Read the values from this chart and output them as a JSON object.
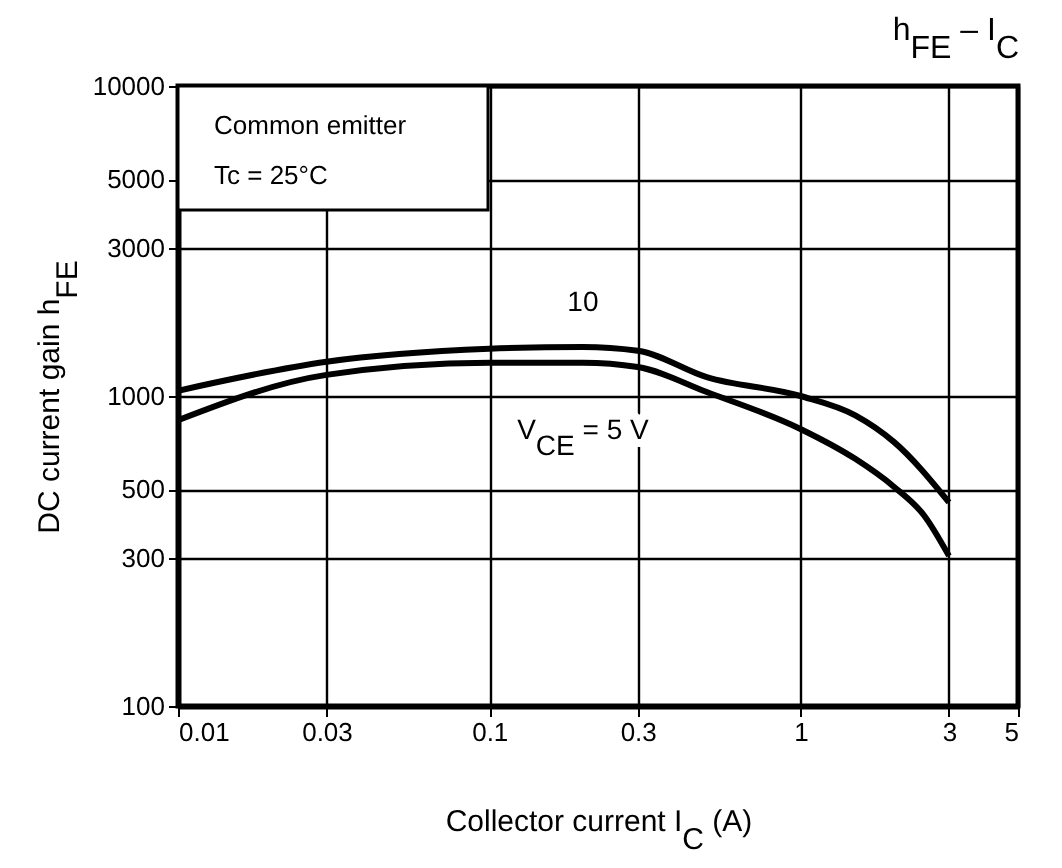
{
  "chart_data": {
    "type": "line",
    "title": "h$_{FE}$ – I$_{C}$",
    "xlabel": "Collector current I$_{C}$ (A)",
    "ylabel": "DC current gain h$_{FE}$",
    "annotations": [
      "Common emitter",
      "Tc = 25°C"
    ],
    "log": "xy",
    "xlim": [
      0.01,
      5
    ],
    "ylim": [
      100,
      10000
    ],
    "xticks": [
      0.01,
      0.03,
      0.1,
      0.3,
      1,
      3,
      5
    ],
    "yticks": [
      100,
      300,
      500,
      1000,
      3000,
      5000,
      10000
    ],
    "grid": true,
    "legend": false,
    "line_style": "solid",
    "marker": "none",
    "x": [
      0.01,
      0.03,
      0.1,
      0.2,
      0.3,
      0.5,
      1,
      1.5,
      2,
      3
    ],
    "series": [
      {
        "name": "10",
        "color": "#000000",
        "values": [
          1040,
          1290,
          1420,
          1440,
          1400,
          1150,
          1000,
          866,
          710,
          454
        ]
      },
      {
        "name": "V$_{CE}$ = 5 V",
        "color": "#000000",
        "x": [
          0.01,
          0.03,
          0.1,
          0.2,
          0.3,
          0.5,
          1,
          1.5,
          2,
          2.5,
          3
        ],
        "values": [
          835,
          1170,
          1280,
          1280,
          1240,
          1030,
          783,
          627,
          509,
          411,
          305
        ]
      }
    ]
  }
}
